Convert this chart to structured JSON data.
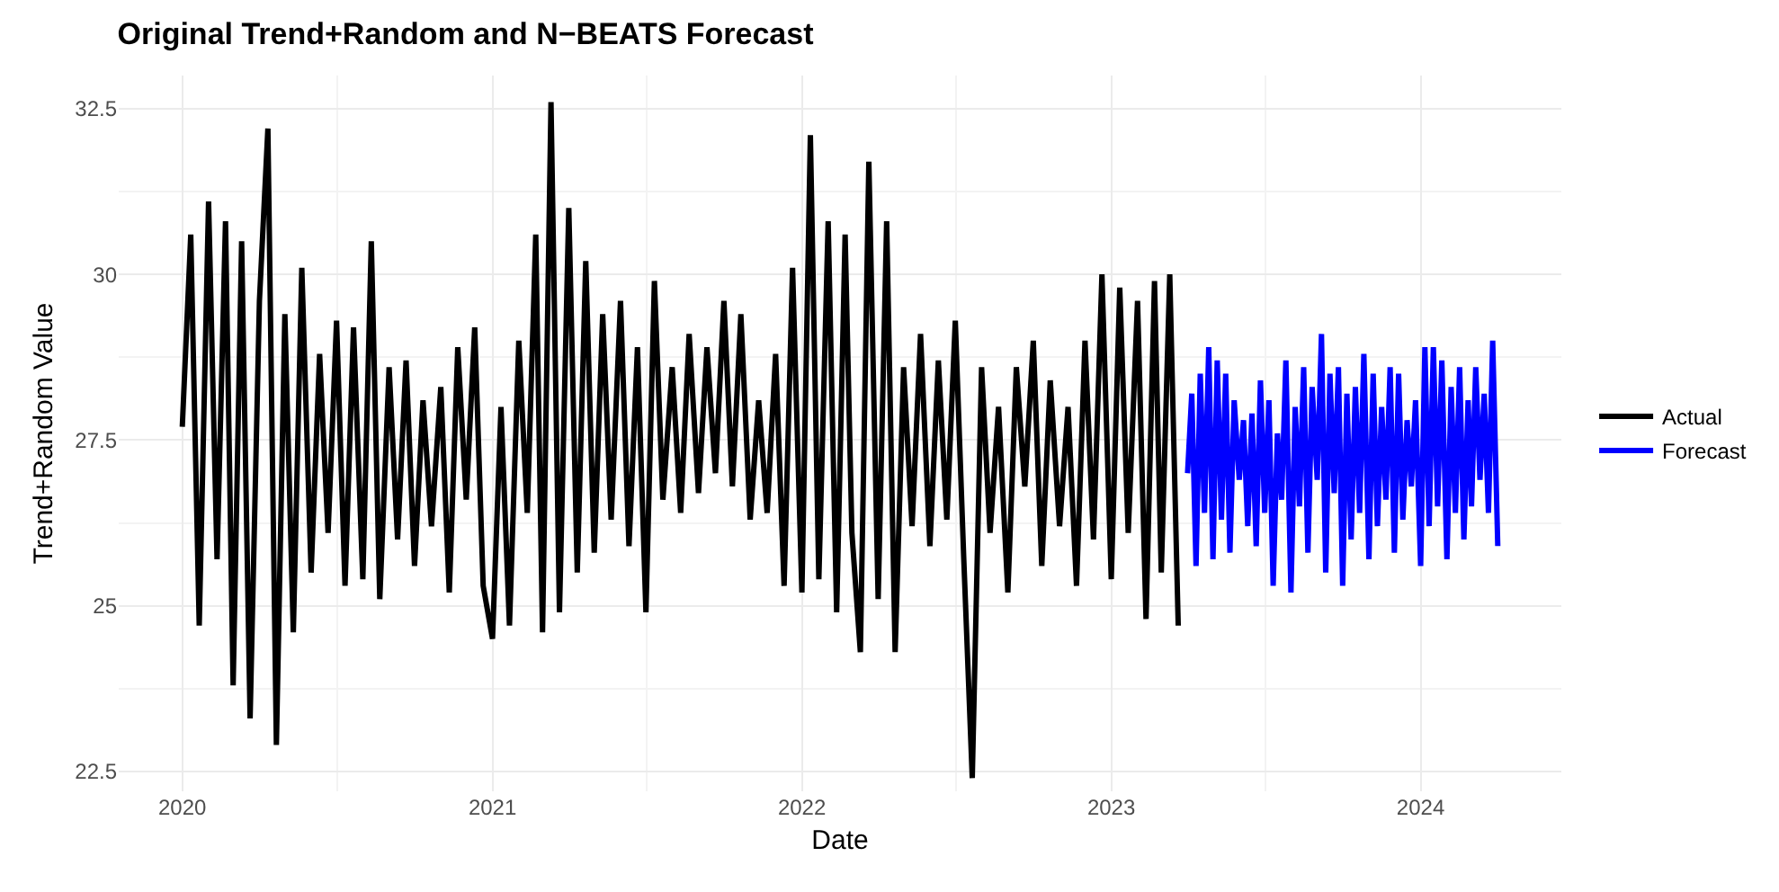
{
  "chart_data": {
    "type": "line",
    "title": "Original Trend+Random and N−BEATS Forecast",
    "xlabel": "Date",
    "ylabel": "Trend+Random Value",
    "xlim": [
      "2019-10-18",
      "2024-06-15"
    ],
    "ylim": [
      22.2,
      33.0
    ],
    "xticks": [
      {
        "value": "2020-01-01",
        "label": "2020"
      },
      {
        "value": "2021-01-01",
        "label": "2021"
      },
      {
        "value": "2022-01-01",
        "label": "2022"
      },
      {
        "value": "2023-01-01",
        "label": "2023"
      },
      {
        "value": "2024-01-01",
        "label": "2024"
      }
    ],
    "yticks": [
      22.5,
      25.0,
      27.5,
      30.0,
      32.5
    ],
    "grid": true,
    "legend": "right",
    "line_style": "solid",
    "marker": "none",
    "series": [
      {
        "name": "Actual",
        "color": "#000000",
        "x": [
          "2020-01-01",
          "2020-01-11",
          "2020-01-21",
          "2020-02-01",
          "2020-02-11",
          "2020-02-21",
          "2020-03-01",
          "2020-03-11",
          "2020-03-21",
          "2020-04-01",
          "2020-04-11",
          "2020-04-21",
          "2020-05-01",
          "2020-05-11",
          "2020-05-21",
          "2020-06-01",
          "2020-06-11",
          "2020-06-21",
          "2020-07-01",
          "2020-07-11",
          "2020-07-21",
          "2020-08-01",
          "2020-08-11",
          "2020-08-21",
          "2020-09-01",
          "2020-09-11",
          "2020-09-21",
          "2020-10-01",
          "2020-10-11",
          "2020-10-21",
          "2020-11-01",
          "2020-11-11",
          "2020-11-21",
          "2020-12-01",
          "2020-12-11",
          "2020-12-21",
          "2021-01-01",
          "2021-01-11",
          "2021-01-21",
          "2021-02-01",
          "2021-02-11",
          "2021-02-21",
          "2021-03-01",
          "2021-03-11",
          "2021-03-21",
          "2021-04-01",
          "2021-04-11",
          "2021-04-21",
          "2021-05-01",
          "2021-05-11",
          "2021-05-21",
          "2021-06-01",
          "2021-06-11",
          "2021-06-21",
          "2021-07-01",
          "2021-07-11",
          "2021-07-21",
          "2021-08-01",
          "2021-08-11",
          "2021-08-21",
          "2021-09-01",
          "2021-09-11",
          "2021-09-21",
          "2021-10-01",
          "2021-10-11",
          "2021-10-21",
          "2021-11-01",
          "2021-11-11",
          "2021-11-21",
          "2021-12-01",
          "2021-12-11",
          "2021-12-21",
          "2022-01-01",
          "2022-01-11",
          "2022-01-21",
          "2022-02-01",
          "2022-02-11",
          "2022-02-21",
          "2022-03-01",
          "2022-03-11",
          "2022-03-21",
          "2022-04-01",
          "2022-04-11",
          "2022-04-21",
          "2022-05-01",
          "2022-05-11",
          "2022-05-21",
          "2022-06-01",
          "2022-06-11",
          "2022-06-21",
          "2022-07-01",
          "2022-07-11",
          "2022-07-21",
          "2022-08-01",
          "2022-08-11",
          "2022-08-21",
          "2022-09-01",
          "2022-09-11",
          "2022-09-21",
          "2022-10-01",
          "2022-10-11",
          "2022-10-21",
          "2022-11-01",
          "2022-11-11",
          "2022-11-21",
          "2022-12-01",
          "2022-12-11",
          "2022-12-21",
          "2023-01-01",
          "2023-01-11",
          "2023-01-21",
          "2023-02-01",
          "2023-02-11",
          "2023-02-21",
          "2023-03-01",
          "2023-03-11",
          "2023-03-21"
        ],
        "values": [
          27.7,
          30.6,
          24.7,
          31.1,
          25.7,
          30.8,
          23.8,
          30.5,
          23.3,
          29.6,
          32.2,
          22.9,
          29.4,
          24.6,
          30.1,
          25.5,
          28.8,
          26.1,
          29.3,
          25.3,
          29.2,
          25.4,
          30.5,
          25.1,
          28.6,
          26.0,
          28.7,
          25.6,
          28.1,
          26.2,
          28.3,
          25.2,
          28.9,
          26.6,
          29.2,
          25.3,
          24.5,
          28.0,
          24.7,
          29.0,
          26.4,
          30.6,
          24.6,
          32.6,
          24.9,
          31.0,
          25.5,
          30.2,
          25.8,
          29.4,
          26.3,
          29.6,
          25.9,
          28.9,
          24.9,
          29.9,
          26.6,
          28.6,
          26.4,
          29.1,
          26.7,
          28.9,
          27.0,
          29.6,
          26.8,
          29.4,
          26.3,
          28.1,
          26.4,
          28.8,
          25.3,
          30.1,
          25.2,
          32.1,
          25.4,
          30.8,
          24.9,
          30.6,
          26.1,
          24.3,
          31.7,
          25.1,
          30.8,
          24.3,
          28.6,
          26.2,
          29.1,
          25.9,
          28.7,
          26.3,
          29.3,
          25.7,
          22.4,
          28.6,
          26.1,
          28.0,
          25.2,
          28.6,
          26.8,
          29.0,
          25.6,
          28.4,
          26.2,
          28.0,
          25.3,
          29.0,
          26.0,
          30.0,
          25.4,
          29.8,
          26.1,
          29.6,
          24.8,
          29.9,
          25.5,
          30.0,
          24.7
        ]
      },
      {
        "name": "Forecast",
        "color": "#0000ff",
        "x": [
          "2023-04-01",
          "2023-04-06",
          "2023-04-11",
          "2023-04-16",
          "2023-04-21",
          "2023-04-26",
          "2023-05-01",
          "2023-05-06",
          "2023-05-11",
          "2023-05-16",
          "2023-05-21",
          "2023-05-26",
          "2023-06-01",
          "2023-06-06",
          "2023-06-11",
          "2023-06-16",
          "2023-06-21",
          "2023-06-26",
          "2023-07-01",
          "2023-07-06",
          "2023-07-11",
          "2023-07-16",
          "2023-07-21",
          "2023-07-26",
          "2023-08-01",
          "2023-08-06",
          "2023-08-11",
          "2023-08-16",
          "2023-08-21",
          "2023-08-26",
          "2023-09-01",
          "2023-09-06",
          "2023-09-11",
          "2023-09-16",
          "2023-09-21",
          "2023-09-26",
          "2023-10-01",
          "2023-10-06",
          "2023-10-11",
          "2023-10-16",
          "2023-10-21",
          "2023-10-26",
          "2023-11-01",
          "2023-11-06",
          "2023-11-11",
          "2023-11-16",
          "2023-11-21",
          "2023-11-26",
          "2023-12-01",
          "2023-12-06",
          "2023-12-11",
          "2023-12-16",
          "2023-12-21",
          "2023-12-26",
          "2024-01-01",
          "2024-01-06",
          "2024-01-11",
          "2024-01-16",
          "2024-01-21",
          "2024-01-26",
          "2024-02-01",
          "2024-02-06",
          "2024-02-11",
          "2024-02-16",
          "2024-02-21",
          "2024-02-26",
          "2024-03-01",
          "2024-03-06",
          "2024-03-11",
          "2024-03-16",
          "2024-03-21",
          "2024-03-26",
          "2024-04-01"
        ],
        "values": [
          27.0,
          28.2,
          25.6,
          28.5,
          26.4,
          28.9,
          25.7,
          28.7,
          26.3,
          28.5,
          25.8,
          28.1,
          26.9,
          27.8,
          26.2,
          27.9,
          25.9,
          28.4,
          26.4,
          28.1,
          25.3,
          27.6,
          26.6,
          28.7,
          25.2,
          28.0,
          26.5,
          28.6,
          25.8,
          28.3,
          26.9,
          29.1,
          25.5,
          28.5,
          26.7,
          28.6,
          25.3,
          28.2,
          26.0,
          28.3,
          26.4,
          28.8,
          25.7,
          28.5,
          26.2,
          28.0,
          26.6,
          28.6,
          25.8,
          28.5,
          26.3,
          27.8,
          26.8,
          28.1,
          25.6,
          28.9,
          26.2,
          28.9,
          26.5,
          28.7,
          25.7,
          28.3,
          26.4,
          28.6,
          26.0,
          28.1,
          26.5,
          28.6,
          26.9,
          28.2,
          26.4,
          29.0,
          25.9
        ]
      }
    ]
  }
}
